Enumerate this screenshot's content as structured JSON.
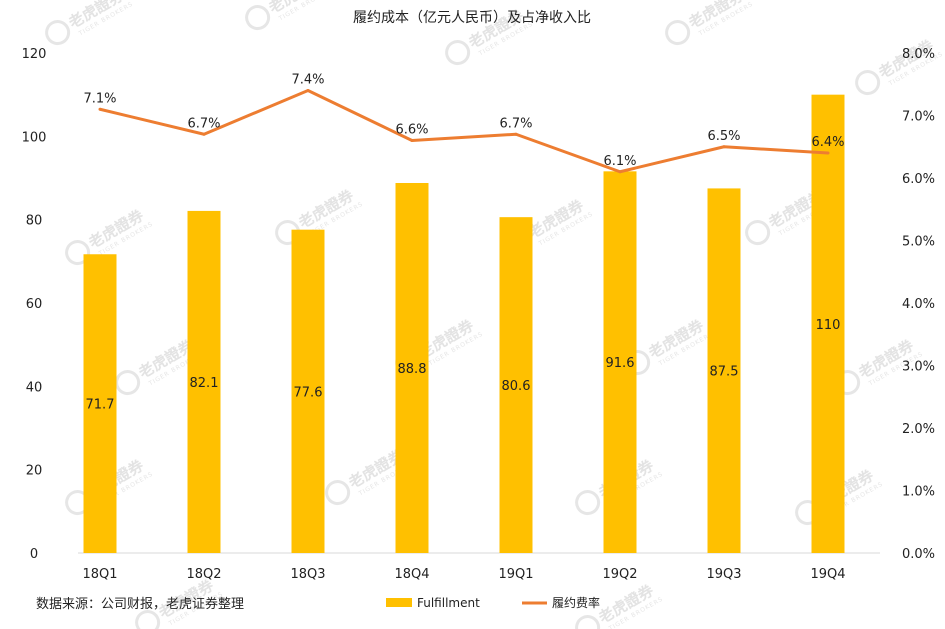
{
  "chart_data": {
    "type": "bar",
    "title": "履约成本（亿元人民币）及占净收入比",
    "categories": [
      "18Q1",
      "18Q2",
      "18Q3",
      "18Q4",
      "19Q1",
      "19Q2",
      "19Q3",
      "19Q4"
    ],
    "series": [
      {
        "name": "Fulfillment",
        "type": "bar",
        "axis": "left",
        "values": [
          71.7,
          82.1,
          77.6,
          88.8,
          80.6,
          91.6,
          87.5,
          110
        ],
        "labels": [
          "71.7",
          "82.1",
          "77.6",
          "88.8",
          "80.6",
          "91.6",
          "87.5",
          "110"
        ]
      },
      {
        "name": "履约费率",
        "type": "line",
        "axis": "right",
        "values": [
          7.1,
          6.7,
          7.4,
          6.6,
          6.7,
          6.1,
          6.5,
          6.4
        ],
        "labels": [
          "7.1%",
          "6.7%",
          "7.4%",
          "6.6%",
          "6.7%",
          "6.1%",
          "6.5%",
          "6.4%"
        ]
      }
    ],
    "y_left": {
      "min": 0,
      "max": 120,
      "ticks": [
        "0",
        "20",
        "40",
        "60",
        "80",
        "100",
        "120"
      ]
    },
    "y_right": {
      "min": 0,
      "max": 8,
      "ticks": [
        "0.0%",
        "1.0%",
        "2.0%",
        "3.0%",
        "4.0%",
        "5.0%",
        "6.0%",
        "7.0%",
        "8.0%"
      ]
    },
    "grid": false,
    "legend_position": "bottom-center",
    "source": "数据来源：公司财报，老虎证券整理",
    "colors": {
      "bar": "#FFC000",
      "line": "#ED7D31"
    }
  },
  "watermark": {
    "text": "老虎證券",
    "sub": "TIGER BROKERS"
  }
}
